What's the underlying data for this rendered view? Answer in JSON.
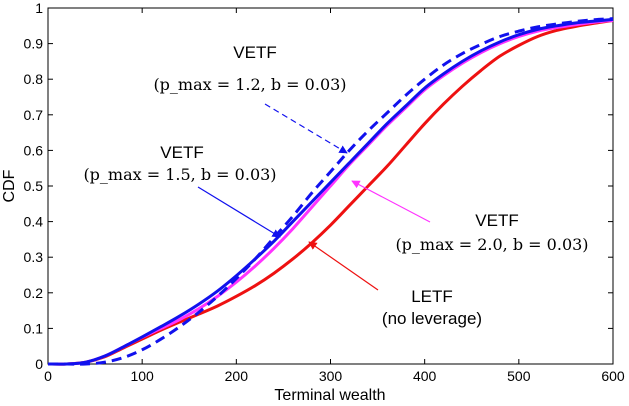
{
  "chart_data": {
    "type": "line",
    "xlabel": "Terminal wealth",
    "ylabel": "CDF",
    "xlim": [
      0,
      600
    ],
    "ylim": [
      0,
      1
    ],
    "x_ticks": [
      "0",
      "100",
      "200",
      "300",
      "400",
      "500",
      "600"
    ],
    "y_ticks": [
      "0",
      "0.1",
      "0.2",
      "0.3",
      "0.4",
      "0.5",
      "0.6",
      "0.7",
      "0.8",
      "0.9",
      "1"
    ],
    "series": [
      {
        "name": "LETF (no leverage)",
        "color": "#ee1111",
        "style": "solid",
        "x": [
          0,
          20,
          40,
          60,
          80,
          100,
          120,
          140,
          160,
          180,
          200,
          220,
          240,
          260,
          280,
          300,
          320,
          340,
          360,
          380,
          400,
          420,
          440,
          460,
          480,
          500,
          520,
          540,
          560,
          580,
          600
        ],
        "y": [
          0,
          0.0,
          0.005,
          0.02,
          0.045,
          0.07,
          0.095,
          0.118,
          0.14,
          0.163,
          0.19,
          0.22,
          0.255,
          0.295,
          0.34,
          0.39,
          0.445,
          0.5,
          0.555,
          0.615,
          0.675,
          0.73,
          0.78,
          0.825,
          0.865,
          0.895,
          0.92,
          0.937,
          0.948,
          0.957,
          0.965
        ]
      },
      {
        "name": "VETF (p_max = 2.0, b = 0.03)",
        "color": "#ff33ff",
        "style": "solid",
        "x": [
          0,
          20,
          40,
          60,
          80,
          100,
          120,
          140,
          160,
          180,
          200,
          220,
          240,
          260,
          280,
          300,
          320,
          340,
          360,
          380,
          400,
          420,
          440,
          460,
          480,
          500,
          520,
          540,
          560,
          580,
          600
        ],
        "y": [
          0,
          0.0,
          0.005,
          0.022,
          0.048,
          0.075,
          0.1,
          0.125,
          0.155,
          0.19,
          0.23,
          0.275,
          0.325,
          0.38,
          0.44,
          0.5,
          0.56,
          0.615,
          0.67,
          0.72,
          0.77,
          0.81,
          0.845,
          0.875,
          0.9,
          0.92,
          0.935,
          0.945,
          0.953,
          0.96,
          0.965
        ]
      },
      {
        "name": "VETF (p_max = 1.5, b = 0.03)",
        "color": "#1111ee",
        "style": "solid",
        "x": [
          0,
          20,
          40,
          60,
          80,
          100,
          120,
          140,
          160,
          180,
          200,
          220,
          240,
          260,
          280,
          300,
          320,
          340,
          360,
          380,
          400,
          420,
          440,
          460,
          480,
          500,
          520,
          540,
          560,
          580,
          600
        ],
        "y": [
          0,
          0.0,
          0.005,
          0.022,
          0.048,
          0.076,
          0.105,
          0.135,
          0.168,
          0.205,
          0.248,
          0.295,
          0.345,
          0.4,
          0.455,
          0.51,
          0.565,
          0.62,
          0.675,
          0.725,
          0.775,
          0.815,
          0.85,
          0.88,
          0.905,
          0.925,
          0.94,
          0.95,
          0.958,
          0.963,
          0.968
        ]
      },
      {
        "name": "VETF (p_max = 1.2, b = 0.03)",
        "color": "#1111ee",
        "style": "dashed",
        "x": [
          0,
          20,
          40,
          60,
          80,
          100,
          120,
          140,
          160,
          180,
          200,
          220,
          240,
          260,
          280,
          300,
          320,
          340,
          360,
          380,
          400,
          420,
          440,
          460,
          480,
          500,
          520,
          540,
          560,
          580,
          600
        ],
        "y": [
          0,
          0.0,
          0.0,
          0.005,
          0.018,
          0.04,
          0.07,
          0.105,
          0.145,
          0.19,
          0.24,
          0.295,
          0.355,
          0.415,
          0.48,
          0.54,
          0.6,
          0.655,
          0.705,
          0.755,
          0.8,
          0.84,
          0.872,
          0.898,
          0.92,
          0.935,
          0.947,
          0.955,
          0.962,
          0.967,
          0.97
        ]
      }
    ],
    "annotations": [
      {
        "title": "VETF",
        "formula": "(p_max = 1.2, b = 0.03)",
        "color": "#1111ee",
        "arrow_style": "dashed",
        "points_to": [
          320,
          0.57
        ]
      },
      {
        "title": "VETF",
        "formula": "(p_max = 1.5, b = 0.03)",
        "color": "#1111ee",
        "arrow_style": "solid",
        "points_to": [
          245,
          0.355
        ]
      },
      {
        "title": "VETF",
        "formula": "(p_max = 2.0, b = 0.03)",
        "color": "#ff33ff",
        "arrow_style": "solid",
        "points_to": [
          325,
          0.51
        ]
      },
      {
        "title": "LETF",
        "formula": "(no leverage)",
        "color": "#ee1111",
        "arrow_style": "solid",
        "points_to": [
          278,
          0.345
        ]
      }
    ]
  }
}
